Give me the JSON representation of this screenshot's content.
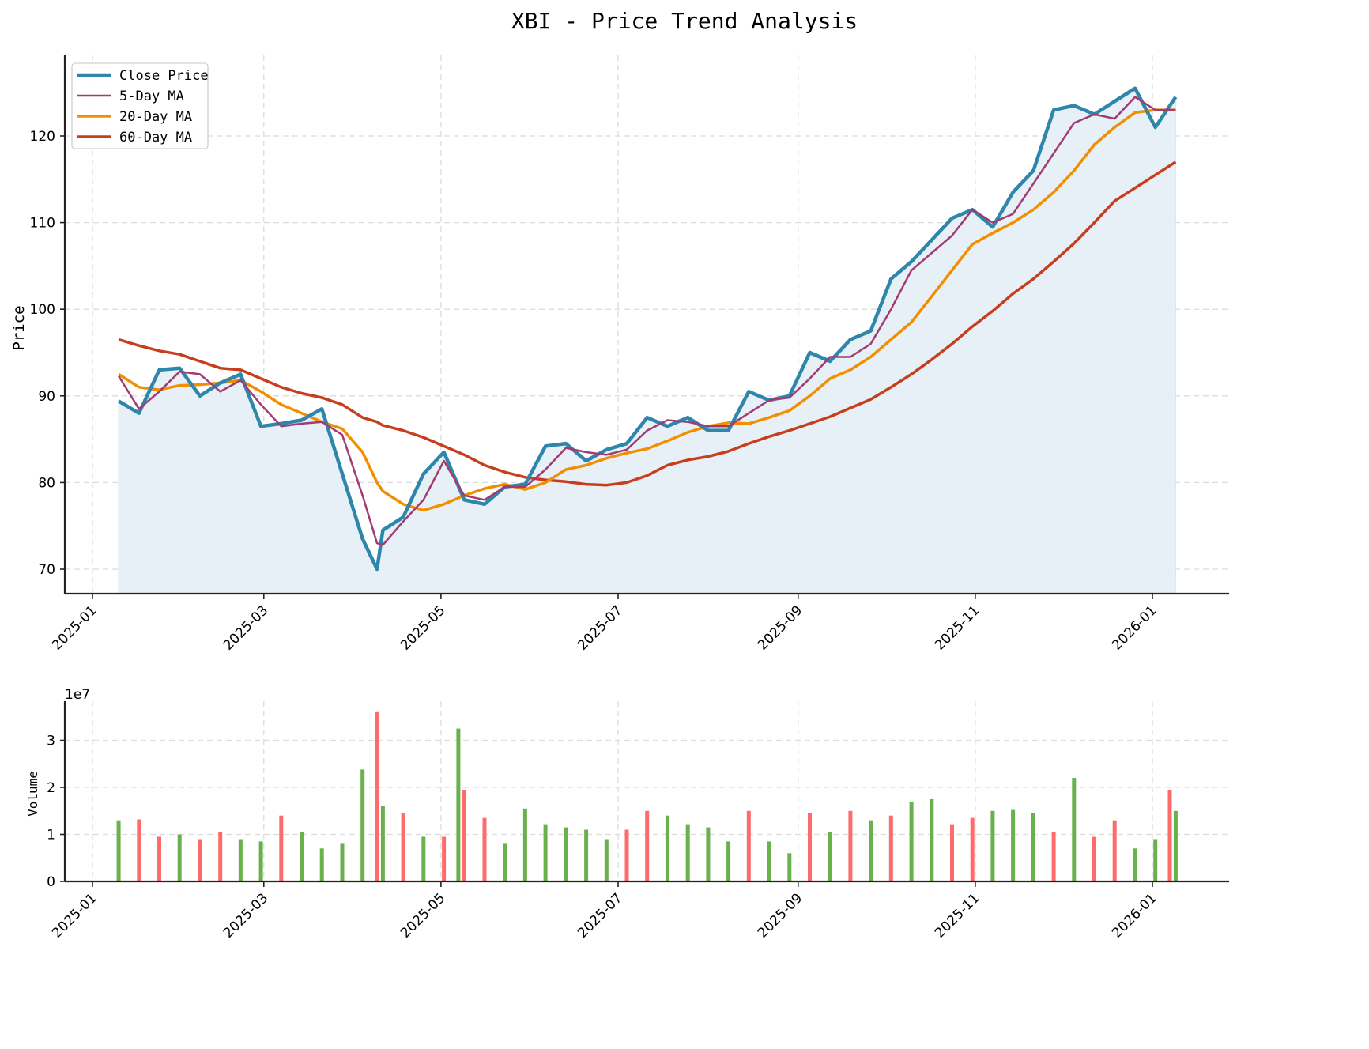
{
  "figure": {
    "title": "XBI - Price Trend Analysis"
  },
  "colors": {
    "close": "#2e86ab",
    "ma5": "#a23b72",
    "ma20": "#f18f01",
    "ma60": "#c73e1d",
    "fill": "#e7f0f6",
    "volume_up": "#6ab04c",
    "volume_down": "#ff6b6b"
  },
  "chart_data": [
    {
      "type": "line",
      "title": "XBI - Price Trend Analysis",
      "xlabel": "",
      "ylabel": "Price",
      "ylim": [
        67.1,
        129.2
      ],
      "yticks": [
        70,
        80,
        90,
        100,
        110,
        120
      ],
      "xticks": [
        "2025-01",
        "2025-03",
        "2025-05",
        "2025-07",
        "2025-09",
        "2025-11",
        "2026-01"
      ],
      "grid": true,
      "legend_position": "upper left",
      "legend": [
        "Close Price",
        "5-Day MA",
        "20-Day MA",
        "60-Day MA"
      ],
      "x": [
        "2025-01-10",
        "2025-01-17",
        "2025-01-24",
        "2025-01-31",
        "2025-02-07",
        "2025-02-14",
        "2025-02-21",
        "2025-02-28",
        "2025-03-07",
        "2025-03-14",
        "2025-03-21",
        "2025-03-28",
        "2025-04-04",
        "2025-04-09",
        "2025-04-11",
        "2025-04-18",
        "2025-04-25",
        "2025-05-02",
        "2025-05-09",
        "2025-05-16",
        "2025-05-23",
        "2025-05-30",
        "2025-06-06",
        "2025-06-13",
        "2025-06-20",
        "2025-06-27",
        "2025-07-04",
        "2025-07-11",
        "2025-07-18",
        "2025-07-25",
        "2025-08-01",
        "2025-08-08",
        "2025-08-15",
        "2025-08-22",
        "2025-08-29",
        "2025-09-05",
        "2025-09-12",
        "2025-09-19",
        "2025-09-26",
        "2025-10-03",
        "2025-10-10",
        "2025-10-17",
        "2025-10-24",
        "2025-10-31",
        "2025-11-07",
        "2025-11-14",
        "2025-11-21",
        "2025-11-28",
        "2025-12-05",
        "2025-12-12",
        "2025-12-19",
        "2025-12-26",
        "2026-01-02",
        "2026-01-09"
      ],
      "series": [
        {
          "name": "Close Price",
          "values": [
            89.4,
            88.0,
            93.0,
            93.2,
            90.0,
            91.5,
            92.5,
            86.5,
            86.8,
            87.2,
            88.5,
            81.0,
            73.5,
            70.0,
            74.5,
            76.0,
            81.0,
            83.5,
            78.0,
            77.5,
            79.5,
            79.8,
            84.2,
            84.5,
            82.5,
            83.8,
            84.5,
            87.5,
            86.5,
            87.5,
            86.0,
            86.0,
            90.5,
            89.5,
            90.0,
            95.0,
            94.0,
            96.5,
            97.5,
            103.5,
            105.5,
            108.0,
            110.5,
            111.5,
            109.5,
            113.5,
            116.0,
            123.0,
            123.5,
            122.5,
            124.0,
            125.5,
            121.0,
            124.5
          ]
        },
        {
          "name": "5-Day MA",
          "values": [
            92.3,
            88.5,
            90.5,
            92.8,
            92.5,
            90.5,
            91.8,
            89.0,
            86.5,
            86.8,
            87.0,
            85.5,
            78.5,
            73.0,
            72.8,
            75.5,
            78.0,
            82.5,
            78.5,
            78.0,
            79.5,
            79.5,
            81.5,
            84.0,
            83.5,
            83.2,
            83.8,
            86.0,
            87.2,
            87.0,
            86.5,
            86.5,
            88.0,
            89.5,
            89.8,
            92.0,
            94.5,
            94.5,
            96.0,
            100.0,
            104.5,
            106.5,
            108.5,
            111.5,
            110.0,
            111.0,
            114.5,
            118.0,
            121.5,
            122.5,
            122.0,
            124.5,
            123.0,
            123.0
          ]
        },
        {
          "name": "20-Day MA",
          "values": [
            92.5,
            91.0,
            90.7,
            91.2,
            91.3,
            91.5,
            91.8,
            90.5,
            89.0,
            88.0,
            87.0,
            86.2,
            83.5,
            80.0,
            79.0,
            77.5,
            76.8,
            77.5,
            78.5,
            79.3,
            79.8,
            79.2,
            80.0,
            81.5,
            82.0,
            82.8,
            83.4,
            83.9,
            84.8,
            85.8,
            86.5,
            86.9,
            86.8,
            87.5,
            88.3,
            90.0,
            92.0,
            93.0,
            94.5,
            96.5,
            98.5,
            101.5,
            104.5,
            107.5,
            108.8,
            110.0,
            111.5,
            113.5,
            116.0,
            119.0,
            121.0,
            122.7,
            123.0,
            123.0
          ]
        },
        {
          "name": "60-Day MA",
          "values": [
            96.5,
            95.8,
            95.2,
            94.8,
            94.0,
            93.2,
            93.0,
            92.0,
            91.0,
            90.3,
            89.8,
            89.0,
            87.5,
            87.0,
            86.6,
            86.0,
            85.2,
            84.2,
            83.2,
            82.0,
            81.2,
            80.6,
            80.3,
            80.1,
            79.8,
            79.7,
            80.0,
            80.8,
            82.0,
            82.6,
            83.0,
            83.6,
            84.5,
            85.3,
            86.0,
            86.8,
            87.6,
            88.6,
            89.6,
            91.0,
            92.5,
            94.2,
            96.0,
            98.0,
            99.8,
            101.8,
            103.5,
            105.5,
            107.6,
            110.0,
            112.5,
            114.0,
            115.5,
            117.0
          ]
        }
      ]
    },
    {
      "type": "bar",
      "title": "",
      "xlabel": "",
      "ylabel": "Volume",
      "y_scale_label": "1e7",
      "ylim": [
        0,
        3.8
      ],
      "yticks": [
        0,
        1,
        2,
        3
      ],
      "xticks": [
        "2025-01",
        "2025-03",
        "2025-05",
        "2025-07",
        "2025-09",
        "2025-11",
        "2026-01"
      ],
      "grid": true,
      "x": [
        "2025-01-10",
        "2025-01-17",
        "2025-01-24",
        "2025-01-31",
        "2025-02-07",
        "2025-02-14",
        "2025-02-21",
        "2025-02-28",
        "2025-03-07",
        "2025-03-14",
        "2025-03-21",
        "2025-03-28",
        "2025-04-04",
        "2025-04-09",
        "2025-04-11",
        "2025-04-18",
        "2025-04-25",
        "2025-05-02",
        "2025-05-07",
        "2025-05-09",
        "2025-05-16",
        "2025-05-23",
        "2025-05-30",
        "2025-06-06",
        "2025-06-13",
        "2025-06-20",
        "2025-06-27",
        "2025-07-04",
        "2025-07-11",
        "2025-07-18",
        "2025-07-25",
        "2025-08-01",
        "2025-08-08",
        "2025-08-15",
        "2025-08-22",
        "2025-08-29",
        "2025-09-05",
        "2025-09-12",
        "2025-09-19",
        "2025-09-26",
        "2025-10-03",
        "2025-10-10",
        "2025-10-17",
        "2025-10-24",
        "2025-10-31",
        "2025-11-07",
        "2025-11-14",
        "2025-11-21",
        "2025-11-28",
        "2025-12-05",
        "2025-12-12",
        "2025-12-19",
        "2025-12-26",
        "2026-01-02",
        "2026-01-07",
        "2026-01-09"
      ],
      "series": [
        {
          "name": "Volume (x1e7)",
          "values": [
            1.3,
            1.32,
            0.95,
            1.0,
            0.9,
            1.05,
            0.9,
            0.85,
            1.4,
            1.05,
            0.7,
            0.8,
            2.38,
            3.6,
            1.6,
            1.45,
            0.95,
            0.95,
            3.25,
            1.95,
            1.35,
            0.8,
            1.55,
            1.2,
            1.15,
            1.1,
            0.9,
            1.1,
            1.5,
            1.4,
            1.2,
            1.15,
            0.85,
            1.5,
            0.85,
            0.6,
            1.45,
            1.05,
            1.5,
            1.3,
            1.4,
            1.7,
            1.75,
            1.2,
            1.35,
            1.5,
            1.52,
            1.45,
            1.05,
            2.2,
            0.95,
            1.3,
            0.7,
            0.9,
            1.95,
            1.5
          ],
          "colors": [
            "up",
            "down",
            "down",
            "up",
            "down",
            "down",
            "up",
            "up",
            "down",
            "up",
            "up",
            "up",
            "up",
            "down",
            "up",
            "down",
            "up",
            "down",
            "up",
            "down",
            "down",
            "up",
            "up",
            "up",
            "up",
            "up",
            "up",
            "down",
            "down",
            "up",
            "up",
            "up",
            "up",
            "down",
            "up",
            "up",
            "down",
            "up",
            "down",
            "up",
            "down",
            "up",
            "up",
            "down",
            "down",
            "up",
            "up",
            "up",
            "down",
            "up",
            "down",
            "down",
            "up",
            "up",
            "down",
            "up"
          ]
        }
      ]
    }
  ]
}
